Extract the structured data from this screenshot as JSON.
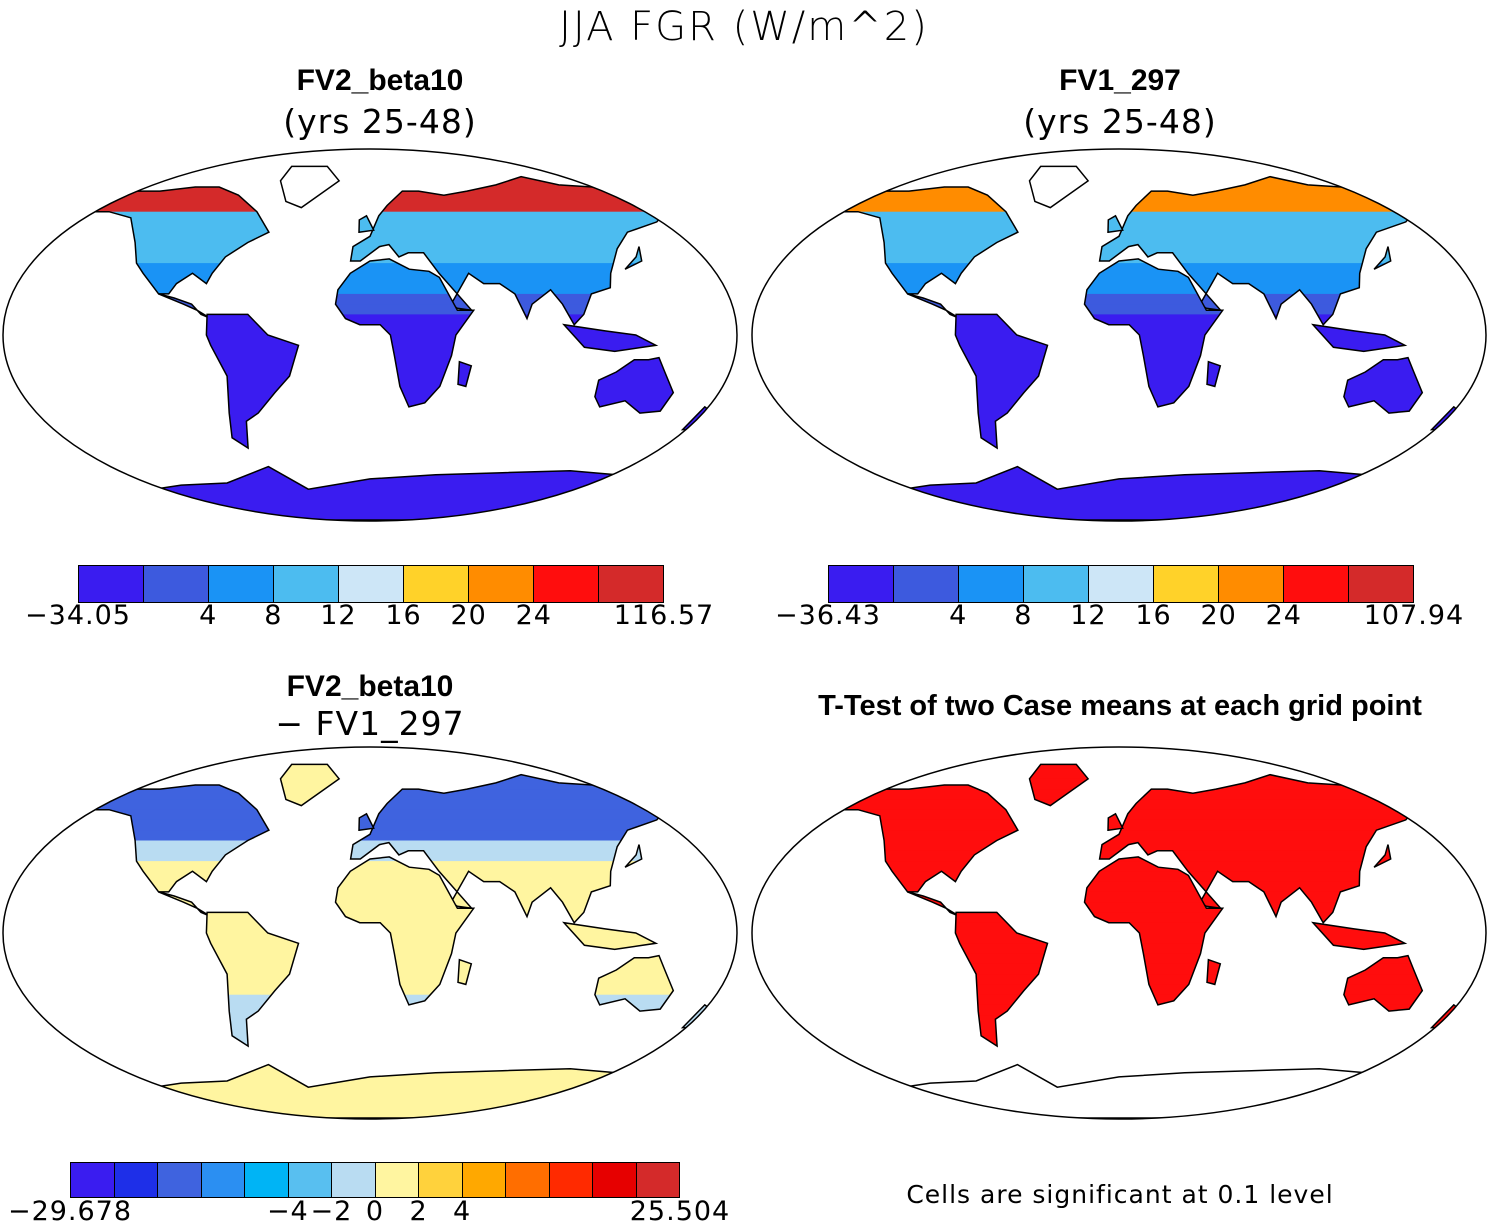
{
  "title": "JJA FGR (W/m^2)",
  "panels": [
    {
      "title": "FV2_beta10",
      "subtitle": "(yrs 25-48)",
      "colorbar": {
        "colors": [
          "#3a1cf0",
          "#3d5ade",
          "#1a93f5",
          "#4cbcf0",
          "#cde6f7",
          "#ffd229",
          "#ff8c00",
          "#ff0d0d",
          "#d42a2a"
        ],
        "ticks": [
          "−34.05",
          "4",
          "8",
          "12",
          "16",
          "20",
          "24",
          "116.57"
        ]
      }
    },
    {
      "title": "FV1_297",
      "subtitle": "(yrs 25-48)",
      "colorbar": {
        "colors": [
          "#3a1cf0",
          "#3d5ade",
          "#1a93f5",
          "#4cbcf0",
          "#cde6f7",
          "#ffd229",
          "#ff8c00",
          "#ff0d0d",
          "#d42a2a"
        ],
        "ticks": [
          "−36.43",
          "4",
          "8",
          "12",
          "16",
          "20",
          "24",
          "107.94"
        ]
      }
    },
    {
      "title": "FV2_beta10",
      "subtitle": "− FV1_297",
      "colorbar": {
        "colors": [
          "#3a1cf0",
          "#1e2fe8",
          "#3f63df",
          "#2b8ff2",
          "#00b4f5",
          "#58bff0",
          "#b9dcf2",
          "#fff5a0",
          "#ffd23c",
          "#ffa800",
          "#ff6e00",
          "#ff2a00",
          "#e60000",
          "#d42a2a"
        ],
        "ticks": [
          "−29.678",
          "−4",
          "−2",
          "0",
          "2",
          "4",
          "25.504"
        ]
      }
    },
    {
      "title": "T-Test of two Case means at each grid point",
      "footnote": "Cells are significant at 0.1 level"
    }
  ]
}
